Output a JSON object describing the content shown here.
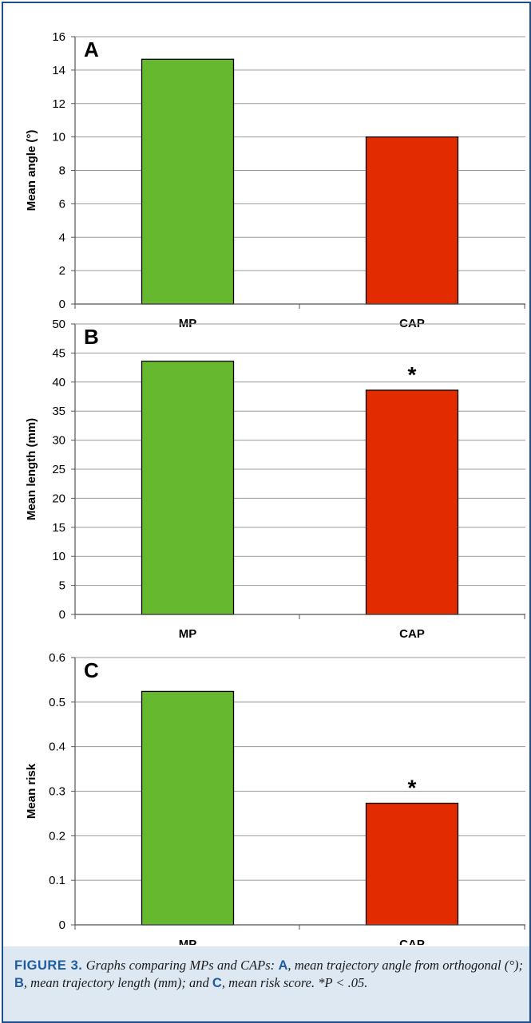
{
  "colors": {
    "green": "#66b82e",
    "red": "#e32b00",
    "grid": "#999999",
    "frame": "#1f4e8c",
    "caption_bg": "#dde8f3",
    "caption_label": "#1f5c9e"
  },
  "chart_data": [
    {
      "type": "bar",
      "panel": "A",
      "categories": [
        "MP",
        "CAP"
      ],
      "values": [
        14.65,
        10.0
      ],
      "ylabel": "Mean angle (°)",
      "ylim": [
        0,
        16
      ],
      "yticks": [
        0,
        2,
        4,
        6,
        8,
        10,
        12,
        14,
        16
      ],
      "tick_labels": [
        "0",
        "2",
        "4",
        "6",
        "8",
        "10",
        "12",
        "14",
        "16"
      ],
      "significance": [
        "",
        ""
      ],
      "grid": true
    },
    {
      "type": "bar",
      "panel": "B",
      "categories": [
        "MP",
        "CAP"
      ],
      "values": [
        43.6,
        38.6
      ],
      "ylabel": "Mean length (mm)",
      "ylim": [
        0,
        50
      ],
      "yticks": [
        0,
        5,
        10,
        15,
        20,
        25,
        30,
        35,
        40,
        45,
        50
      ],
      "tick_labels": [
        "0",
        "5",
        "10",
        "15",
        "20",
        "25",
        "30",
        "35",
        "40",
        "45",
        "50"
      ],
      "significance": [
        "",
        "*"
      ],
      "grid": true
    },
    {
      "type": "bar",
      "panel": "C",
      "categories": [
        "MP",
        "CAP"
      ],
      "values": [
        0.524,
        0.273
      ],
      "ylabel": "Mean risk",
      "ylim": [
        0,
        0.6
      ],
      "yticks": [
        0,
        0.1,
        0.2,
        0.3,
        0.4,
        0.5,
        0.6
      ],
      "tick_labels": [
        "0",
        "0.1",
        "0.2",
        "0.3",
        "0.4",
        "0.5",
        "0.6"
      ],
      "significance": [
        "",
        "*"
      ],
      "grid": true
    }
  ],
  "caption": {
    "label": "FIGURE 3.",
    "text_1": "Graphs comparing MPs and CAPs:",
    "letter_a": "A",
    "text_2": ", mean trajectory angle from orthogonal (°);",
    "letter_b": "B",
    "text_3": ", mean trajectory length (mm); and",
    "letter_c": "C",
    "text_4": ", mean risk score. *",
    "p_value": "P < .05."
  }
}
